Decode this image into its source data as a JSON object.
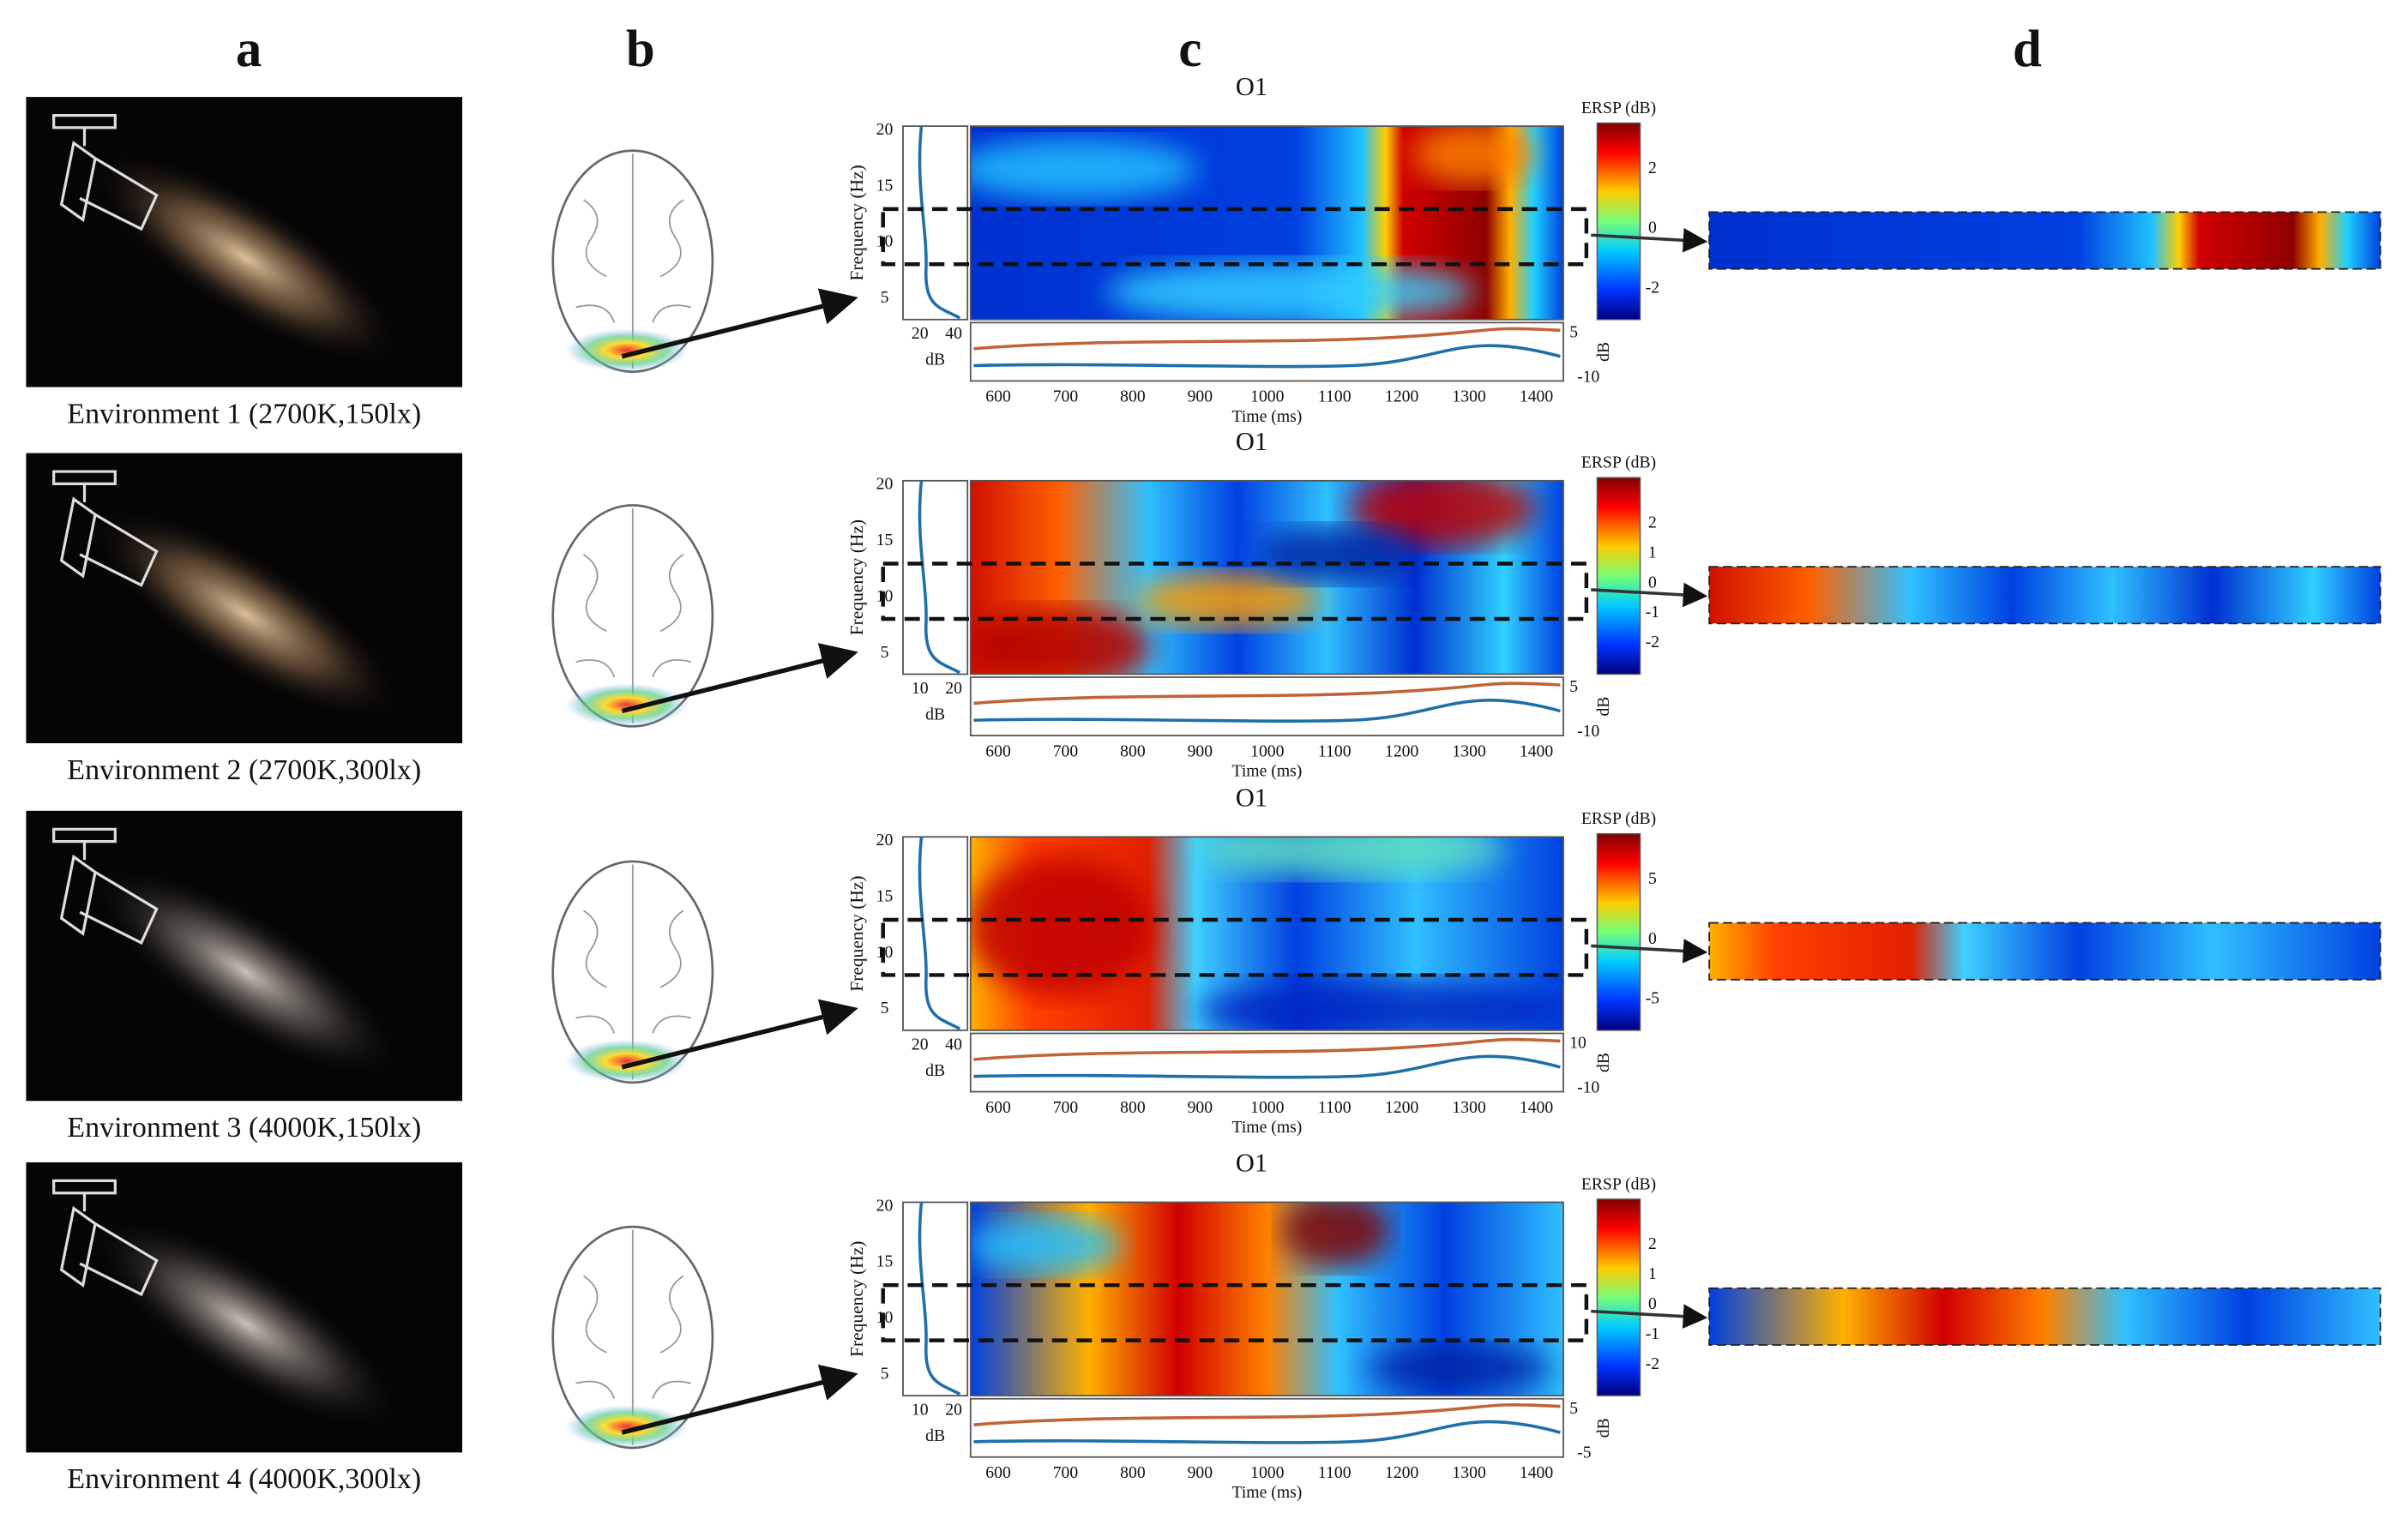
{
  "panel_labels": [
    "a",
    "b",
    "c",
    "d"
  ],
  "rows": [
    {
      "environment": "Environment 1 (2700K,150lx)",
      "channel": "O1",
      "y_axis_label": "Frequency (Hz)",
      "y_ticks": [
        "20",
        "15",
        "10",
        "5"
      ],
      "margin_ticks": [
        "20",
        "40"
      ],
      "margin_unit": "dB",
      "x_ticks": [
        "600",
        "700",
        "800",
        "900",
        "1000",
        "1100",
        "1200",
        "1300",
        "1400"
      ],
      "x_axis_label": "Time (ms)",
      "colorbar_title": "ERSP (dB)",
      "colorbar_ticks": [
        "2",
        "0",
        "-2"
      ],
      "side_ticks": [
        "5",
        "-10"
      ],
      "side_unit": "dB"
    },
    {
      "environment": "Environment 2 (2700K,300lx)",
      "channel": "O1",
      "y_axis_label": "Frequency (Hz)",
      "y_ticks": [
        "20",
        "15",
        "10",
        "5"
      ],
      "margin_ticks": [
        "10",
        "20"
      ],
      "margin_unit": "dB",
      "x_ticks": [
        "600",
        "700",
        "800",
        "900",
        "1000",
        "1100",
        "1200",
        "1300",
        "1400"
      ],
      "x_axis_label": "Time (ms)",
      "colorbar_title": "ERSP (dB)",
      "colorbar_ticks": [
        "2",
        "1",
        "0",
        "-1",
        "-2"
      ],
      "side_ticks": [
        "5",
        "-10"
      ],
      "side_unit": "dB"
    },
    {
      "environment": "Environment 3 (4000K,150lx)",
      "channel": "O1",
      "y_axis_label": "Frequency (Hz)",
      "y_ticks": [
        "20",
        "15",
        "10",
        "5"
      ],
      "margin_ticks": [
        "20",
        "40"
      ],
      "margin_unit": "dB",
      "x_ticks": [
        "600",
        "700",
        "800",
        "900",
        "1000",
        "1100",
        "1200",
        "1300",
        "1400"
      ],
      "x_axis_label": "Time (ms)",
      "colorbar_title": "ERSP (dB)",
      "colorbar_ticks": [
        "5",
        "0",
        "-5"
      ],
      "side_ticks": [
        "10",
        "-10"
      ],
      "side_unit": "dB"
    },
    {
      "environment": "Environment 4 (4000K,300lx)",
      "channel": "O1",
      "y_axis_label": "Frequency (Hz)",
      "y_ticks": [
        "20",
        "15",
        "10",
        "5"
      ],
      "margin_ticks": [
        "10",
        "20"
      ],
      "margin_unit": "dB",
      "x_ticks": [
        "600",
        "700",
        "800",
        "900",
        "1000",
        "1100",
        "1200",
        "1300",
        "1400"
      ],
      "x_axis_label": "Time (ms)",
      "colorbar_title": "ERSP (dB)",
      "colorbar_ticks": [
        "2",
        "1",
        "0",
        "-1",
        "-2"
      ],
      "side_ticks": [
        "5",
        "-5"
      ],
      "side_unit": "dB"
    }
  ]
}
